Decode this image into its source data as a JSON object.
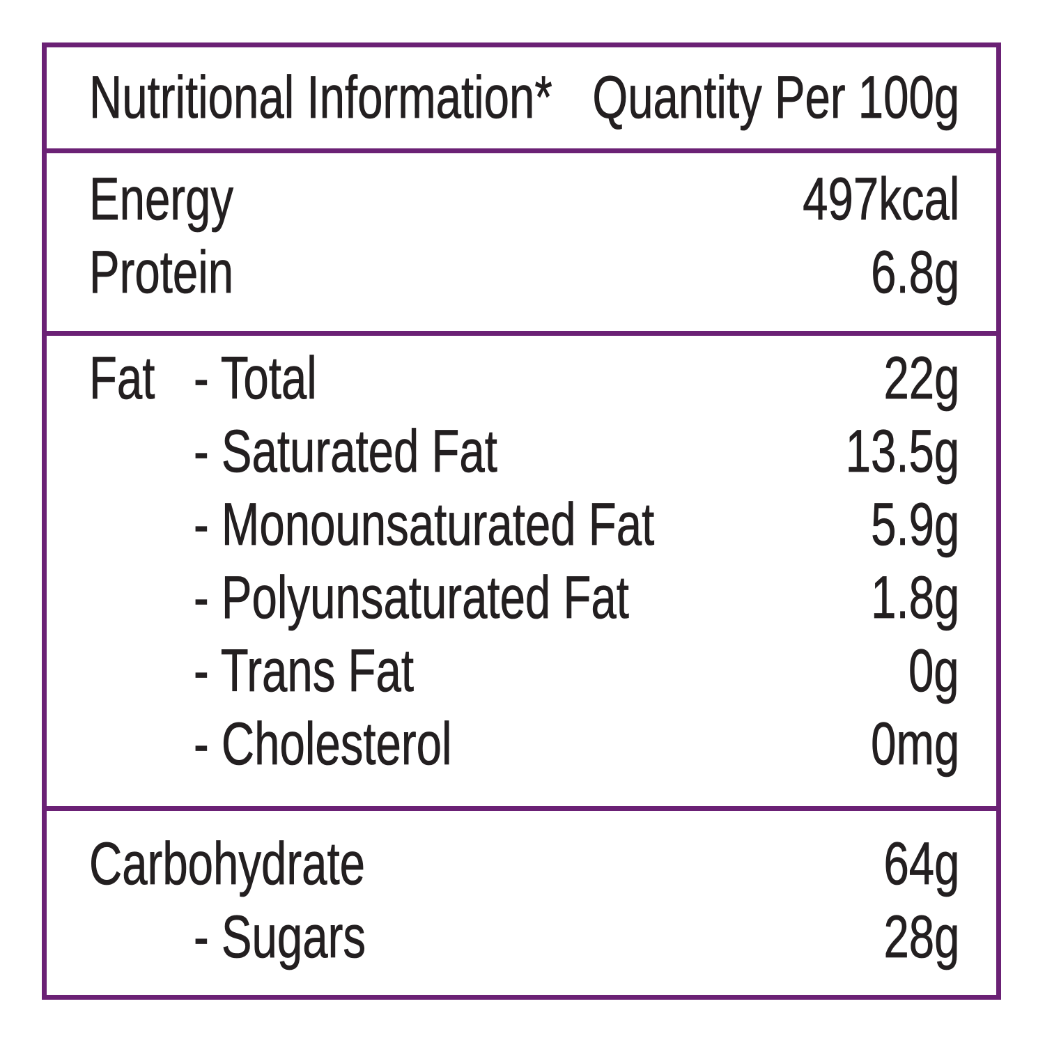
{
  "colors": {
    "border": "#6b2175",
    "text": "#231f20",
    "background": "#ffffff"
  },
  "table": {
    "header": {
      "title": "Nutritional Information*",
      "quantity_label": "Quantity Per 100g"
    },
    "sections": [
      {
        "name": "macronutrients",
        "rows": [
          {
            "label": "Energy",
            "value": "497kcal"
          },
          {
            "label": "Protein",
            "value": "6.8g"
          }
        ]
      },
      {
        "name": "fat",
        "rows": [
          {
            "prefix": "Fat",
            "label": "- Total",
            "value": "22g"
          },
          {
            "prefix": "",
            "label": "- Saturated Fat",
            "value": "13.5g"
          },
          {
            "prefix": "",
            "label": "- Monounsaturated Fat",
            "value": "5.9g"
          },
          {
            "prefix": "",
            "label": "- Polyunsaturated Fat",
            "value": "1.8g"
          },
          {
            "prefix": "",
            "label": "- Trans Fat",
            "value": "0g"
          },
          {
            "prefix": "",
            "label": "- Cholesterol",
            "value": "0mg"
          }
        ]
      },
      {
        "name": "carbohydrate",
        "rows": [
          {
            "label": "Carbohydrate",
            "value": "64g"
          },
          {
            "label": "- Sugars",
            "value": "28g"
          }
        ]
      }
    ]
  }
}
